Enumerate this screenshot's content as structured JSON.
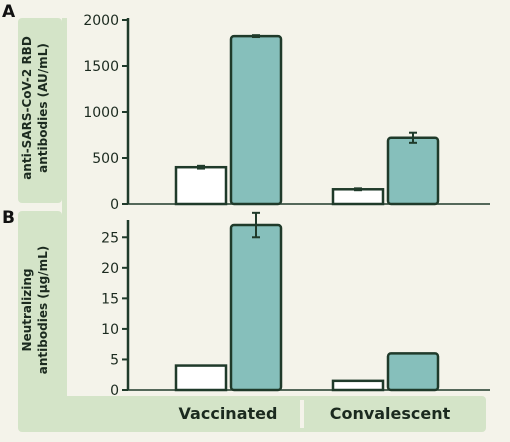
{
  "colors": {
    "background": "#f4f3ea",
    "band": "#d4e4c8",
    "axis": "#1f3a2a",
    "unfilled_bar": "#ffffff",
    "filled_bar": "#86bfbb"
  },
  "group_labels": [
    "Vaccinated",
    "Convalescent"
  ],
  "chart_data": [
    {
      "panel": "A",
      "type": "bar",
      "categories": [
        "Vaccinated",
        "Convalescent"
      ],
      "ylabel_lines": [
        "anti-SARS-CoV-2 RBD",
        "antibodies (AU/mL)"
      ],
      "ylim": [
        0,
        2000
      ],
      "yticks": [
        0,
        500,
        1000,
        1500,
        2000
      ],
      "series": [
        {
          "values": [
            400,
            160
          ],
          "errors": [
            15,
            10
          ],
          "style": "unfilled"
        },
        {
          "values": [
            1825,
            720
          ],
          "errors": [
            10,
            55
          ],
          "style": "filled"
        }
      ]
    },
    {
      "panel": "B",
      "type": "bar",
      "categories": [
        "Vaccinated",
        "Convalescent"
      ],
      "ylabel_lines": [
        "Neutralizing",
        "antibodies (µg/mL)"
      ],
      "ylim": [
        0,
        27.5
      ],
      "yticks": [
        0,
        5,
        10,
        15,
        20,
        25
      ],
      "series": [
        {
          "values": [
            4,
            1.5
          ],
          "errors": [
            0,
            0
          ],
          "style": "unfilled"
        },
        {
          "values": [
            27,
            6
          ],
          "errors": [
            2,
            0
          ],
          "style": "filled"
        }
      ]
    }
  ]
}
